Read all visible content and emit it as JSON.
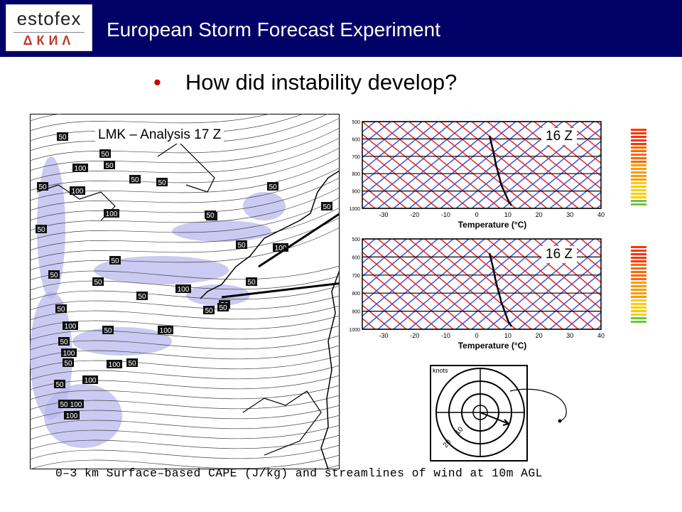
{
  "header": {
    "logo_text": "estofex",
    "logo_glyphs": "ΔКИΛ",
    "title": "European Storm Forecast Experiment",
    "bg_color": "#000066"
  },
  "bullet": {
    "text": "How did instability develop?",
    "color": "#cc0000"
  },
  "map": {
    "label": "LMK – Analysis 17 Z",
    "cape_labels": [
      "50",
      "50",
      "100",
      "50",
      "50",
      "50",
      "100",
      "50",
      "50",
      "50",
      "50",
      "100",
      "50",
      "50",
      "50",
      "100",
      "50",
      "50",
      "50",
      "50",
      "50",
      "100",
      "50",
      "50",
      "100",
      "50",
      "100",
      "50",
      "100",
      "50",
      "50",
      "100",
      "50",
      "100",
      "50",
      "100",
      "100",
      "50",
      "50"
    ],
    "caption": "0–3 km Surface–based CAPE (J/kg) and streamlines of wind at 10m AGL"
  },
  "sounding_top": {
    "time_label": "16 Z",
    "pressure_ticks": [
      "500",
      "600",
      "700",
      "800",
      "900",
      "1000"
    ],
    "temp_ticks": [
      "-30",
      "-20",
      "-10",
      "0",
      "10",
      "20",
      "30",
      "40"
    ],
    "xlabel": "Temperature (°C)"
  },
  "sounding_bottom": {
    "time_label": "16 Z",
    "pressure_ticks": [
      "500",
      "600",
      "700",
      "800",
      "900",
      "1000"
    ],
    "temp_ticks": [
      "-30",
      "-20",
      "-10",
      "0",
      "10",
      "20",
      "30",
      "40"
    ],
    "xlabel": "Temperature (°C)"
  },
  "hodograph": {
    "unit_label": "knots",
    "ring_labels": [
      "10",
      "20"
    ]
  }
}
